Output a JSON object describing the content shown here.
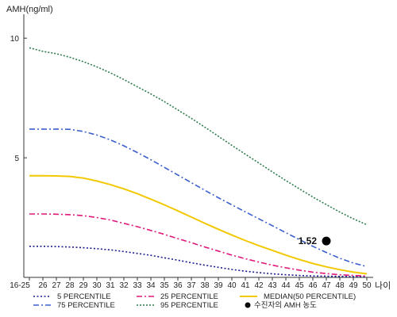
{
  "chart_data": {
    "type": "line",
    "title": "",
    "ylabel": "AMH(ng/ml)",
    "xlabel": "나이",
    "ylim": [
      0,
      11
    ],
    "y_ticks": [
      "5",
      "10"
    ],
    "categories": [
      "16-25",
      "26",
      "27",
      "28",
      "29",
      "30",
      "31",
      "32",
      "33",
      "34",
      "35",
      "36",
      "37",
      "38",
      "39",
      "40",
      "41",
      "42",
      "43",
      "44",
      "45",
      "46",
      "47",
      "48",
      "49",
      "50"
    ],
    "grid": false,
    "legend_position": "bottom",
    "series": [
      {
        "name": "5 PERCENTILE",
        "color": "#1a1a8c",
        "dash": "2,2.5",
        "values": [
          1.3,
          1.3,
          1.29,
          1.27,
          1.24,
          1.2,
          1.15,
          1.08,
          1.0,
          0.92,
          0.82,
          0.72,
          0.61,
          0.51,
          0.42,
          0.33,
          0.26,
          0.2,
          0.15,
          0.11,
          0.08,
          0.06,
          0.05,
          0.04,
          0.03,
          0.03
        ]
      },
      {
        "name": "75 PERCENTILE",
        "color": "#3a5fcd",
        "dash": "7,3,2,3",
        "values": [
          6.2,
          6.2,
          6.2,
          6.19,
          6.1,
          5.95,
          5.75,
          5.5,
          5.22,
          4.92,
          4.6,
          4.28,
          3.96,
          3.64,
          3.33,
          3.03,
          2.74,
          2.45,
          2.16,
          1.87,
          1.58,
          1.3,
          1.04,
          0.8,
          0.6,
          0.45
        ]
      },
      {
        "name": "25 PERCENTILE",
        "color": "#e0187a",
        "dash": "7,3,2,3",
        "values": [
          2.65,
          2.65,
          2.64,
          2.62,
          2.58,
          2.5,
          2.4,
          2.26,
          2.12,
          1.96,
          1.8,
          1.62,
          1.45,
          1.27,
          1.1,
          0.93,
          0.78,
          0.64,
          0.51,
          0.4,
          0.3,
          0.22,
          0.16,
          0.11,
          0.08,
          0.06
        ]
      },
      {
        "name": "95 PERCENTILE",
        "color": "#2f7d4e",
        "dash": "2,2",
        "values": [
          9.6,
          9.45,
          9.35,
          9.2,
          9.02,
          8.8,
          8.55,
          8.27,
          7.97,
          7.67,
          7.35,
          7.0,
          6.65,
          6.28,
          5.9,
          5.52,
          5.15,
          4.78,
          4.41,
          4.05,
          3.7,
          3.36,
          3.04,
          2.73,
          2.45,
          2.2
        ]
      },
      {
        "name": "MEDIAN(50 PERCENTILE)",
        "color": "#f2c800",
        "dash": "",
        "values": [
          4.25,
          4.25,
          4.24,
          4.22,
          4.15,
          4.03,
          3.88,
          3.7,
          3.5,
          3.27,
          3.03,
          2.78,
          2.52,
          2.26,
          2.01,
          1.77,
          1.54,
          1.33,
          1.13,
          0.93,
          0.75,
          0.58,
          0.44,
          0.32,
          0.22,
          0.15
        ]
      }
    ],
    "highlight_point": {
      "name": "수진자의 AMH 농도",
      "x": "47",
      "y": 1.52,
      "label": "1.52",
      "color": "#000000"
    }
  }
}
